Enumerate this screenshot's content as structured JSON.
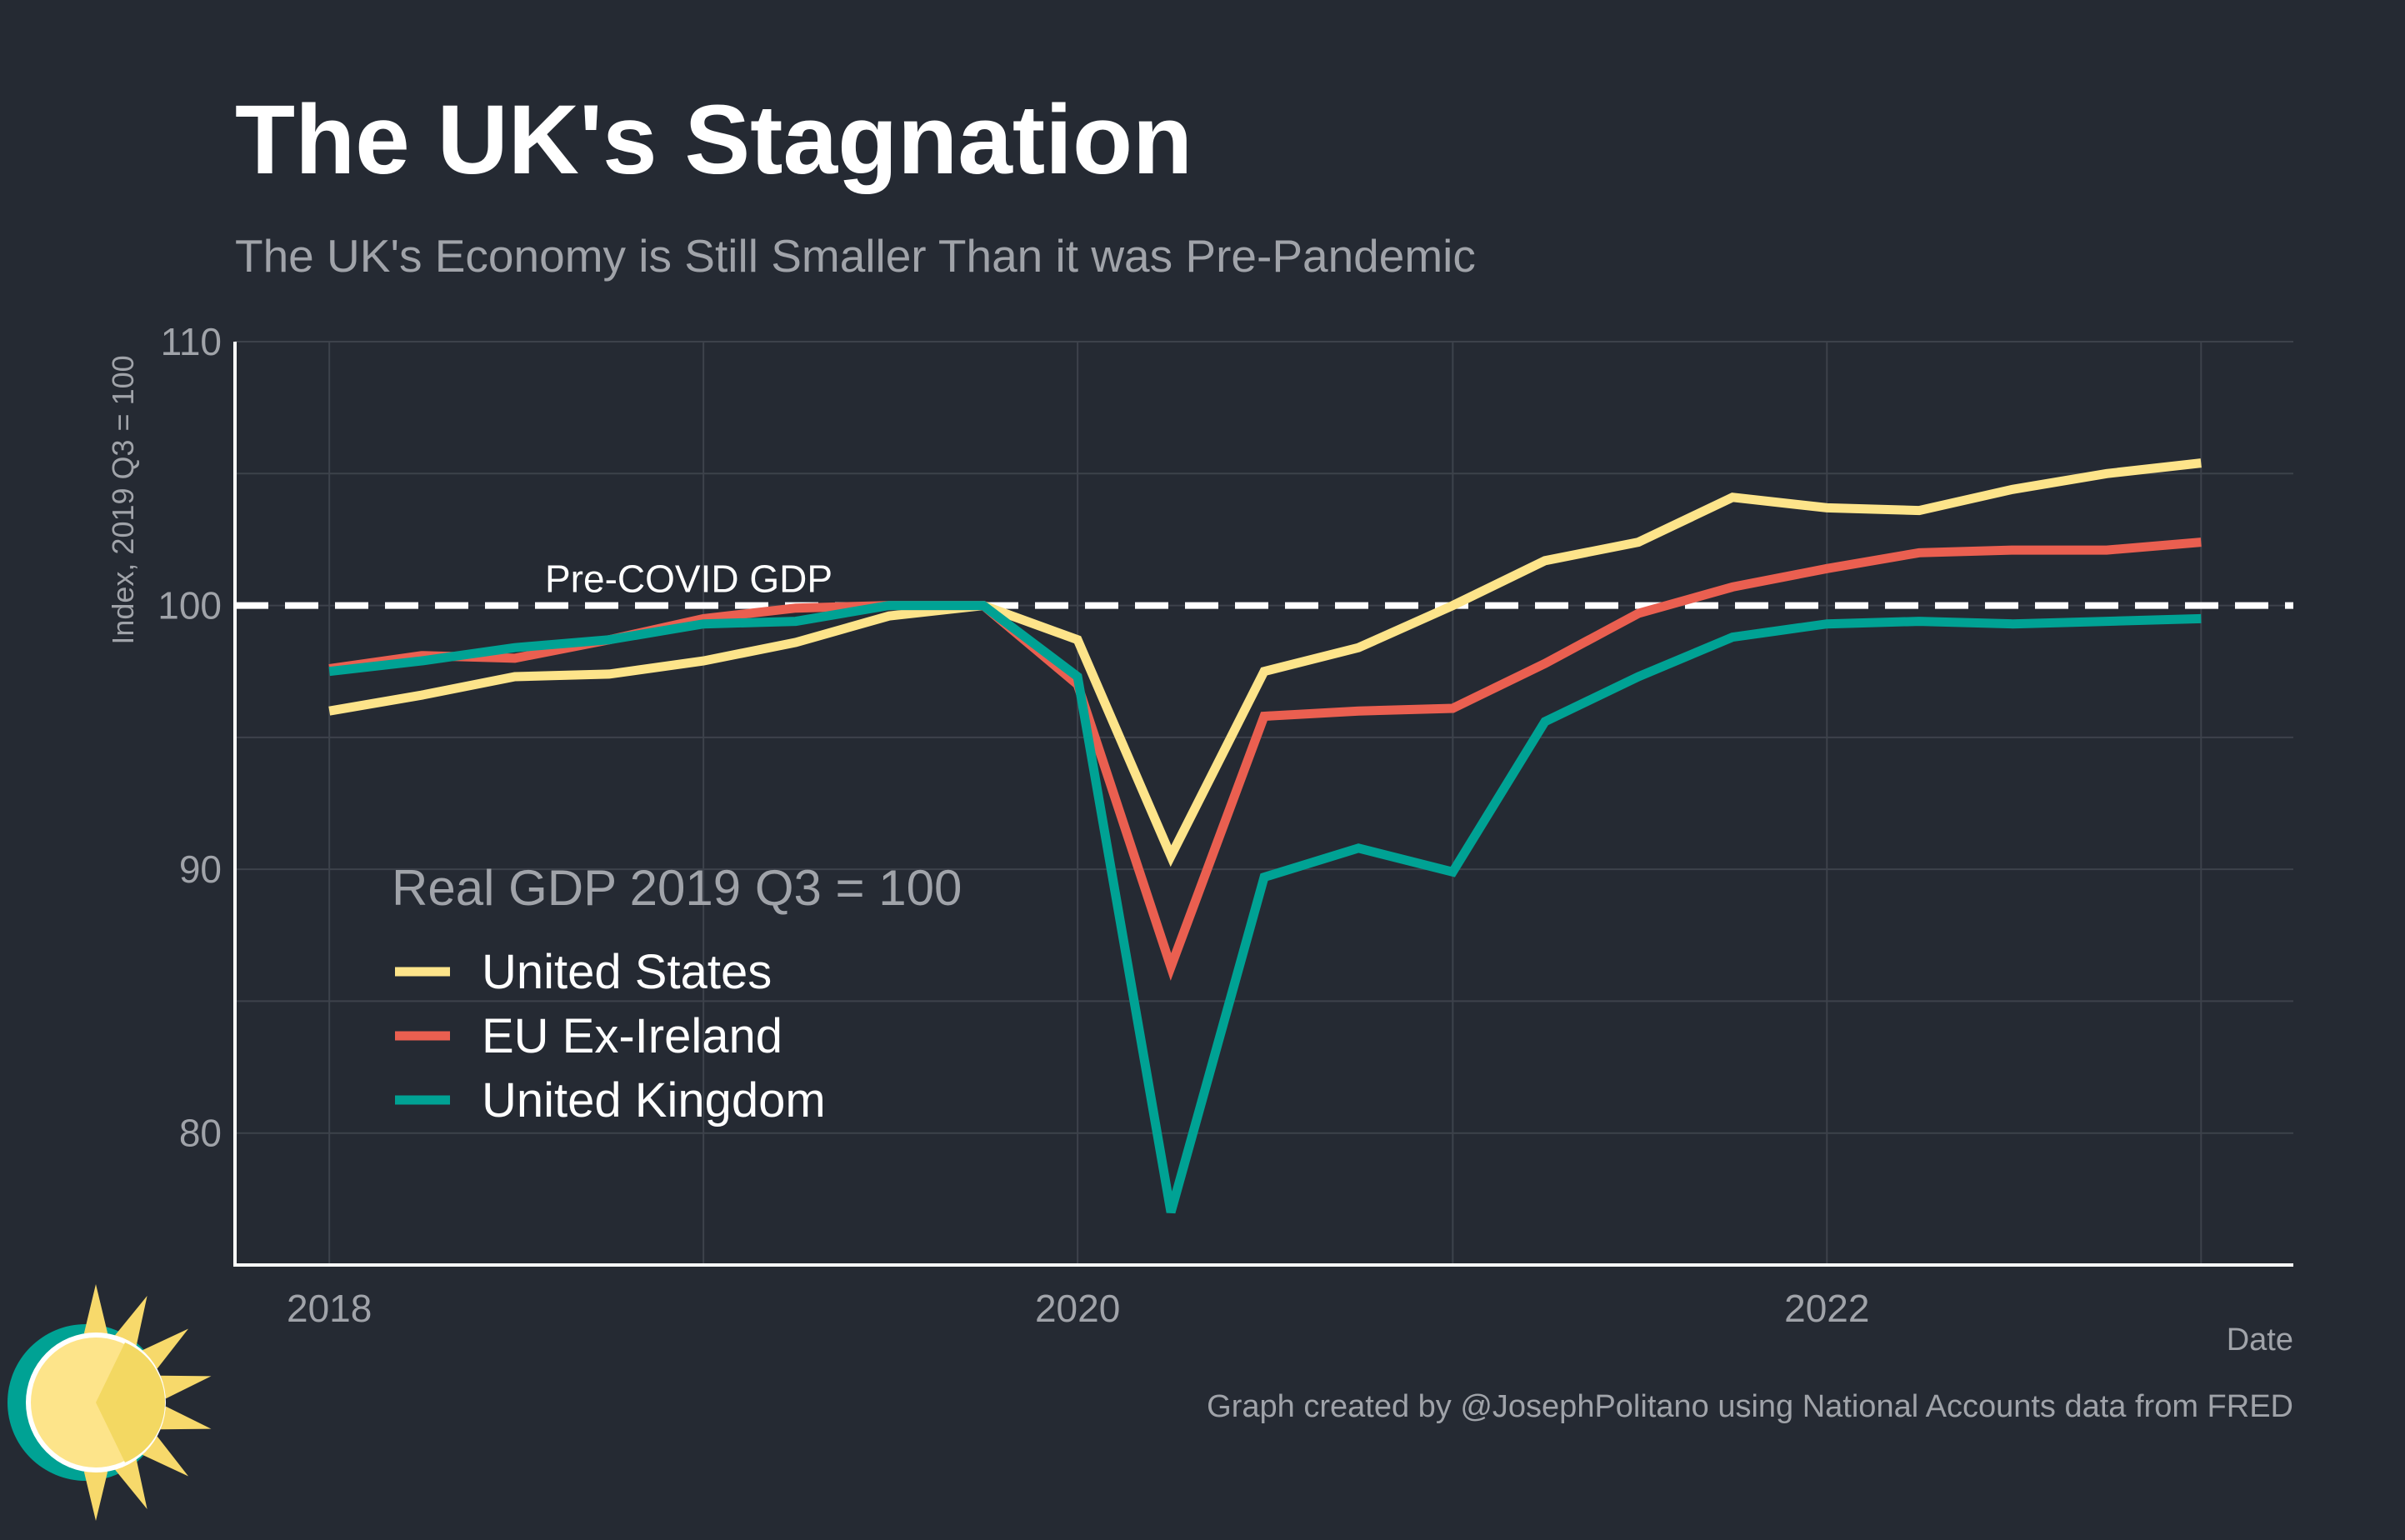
{
  "colors": {
    "background": "#252a33",
    "us": "#fde48a",
    "eu": "#ea5f50",
    "uk": "#00a294",
    "grid": "#3d424b",
    "axis": "#ffffff",
    "muted": "#a0a3a9",
    "dashed": "#ffffff"
  },
  "logo_icon": "sun-logo-icon",
  "chart_data": {
    "type": "line",
    "title": "The UK's Stagnation",
    "subtitle": "The UK's Economy is Still Smaller Than it was Pre-Pandemic",
    "xlabel": "Date",
    "ylabel": "Index, 2019 Q3 = 100",
    "caption": "Graph created by @JosephPolitano using National Accounts data from FRED",
    "x_ticks": [
      "2018",
      "2020",
      "2022"
    ],
    "x_tick_values": [
      "2018-01-01",
      "2020-01-01",
      "2022-01-01"
    ],
    "xlim": [
      "2017-10-01",
      "2023-04-01"
    ],
    "y_ticks": [
      80,
      90,
      100,
      110
    ],
    "ylim": [
      75,
      110
    ],
    "grid": true,
    "legend_title": "Real GDP 2019 Q3 = 100",
    "legend_position": "bottom-left",
    "reference_line": {
      "value": 100,
      "label": "Pre-COVID GDP",
      "style": "dashed"
    },
    "x": [
      "2018-01-01",
      "2018-04-01",
      "2018-07-01",
      "2018-10-01",
      "2019-01-01",
      "2019-04-01",
      "2019-07-01",
      "2019-10-01",
      "2020-01-01",
      "2020-04-01",
      "2020-07-01",
      "2020-10-01",
      "2021-01-01",
      "2021-04-01",
      "2021-07-01",
      "2021-10-01",
      "2022-01-01",
      "2022-04-01",
      "2022-07-01",
      "2022-10-01",
      "2023-01-01"
    ],
    "series": [
      {
        "name": "United States",
        "color_key": "us",
        "values": [
          96.0,
          96.6,
          97.3,
          97.4,
          97.9,
          98.6,
          99.6,
          100.0,
          98.7,
          90.5,
          97.5,
          98.4,
          100.0,
          101.7,
          102.4,
          104.1,
          103.7,
          103.6,
          104.4,
          105.0,
          105.4
        ]
      },
      {
        "name": "EU Ex-Ireland",
        "color_key": "eu",
        "values": [
          97.6,
          98.1,
          98.0,
          98.7,
          99.5,
          99.9,
          100.0,
          100.0,
          97.0,
          86.3,
          95.8,
          96.0,
          96.1,
          97.8,
          99.7,
          100.7,
          101.4,
          102.0,
          102.1,
          102.1,
          102.4
        ]
      },
      {
        "name": "United Kingdom",
        "color_key": "uk",
        "values": [
          97.5,
          97.9,
          98.4,
          98.7,
          99.3,
          99.4,
          100.0,
          100.0,
          97.3,
          77.0,
          89.7,
          90.8,
          89.9,
          95.6,
          97.3,
          98.8,
          99.3,
          99.4,
          99.3,
          99.4,
          99.5
        ]
      }
    ]
  }
}
